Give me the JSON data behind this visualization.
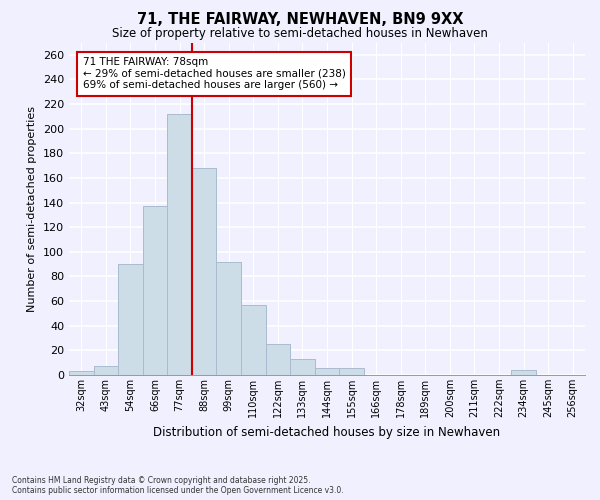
{
  "title": "71, THE FAIRWAY, NEWHAVEN, BN9 9XX",
  "subtitle": "Size of property relative to semi-detached houses in Newhaven",
  "xlabel": "Distribution of semi-detached houses by size in Newhaven",
  "ylabel": "Number of semi-detached properties",
  "categories": [
    "32sqm",
    "43sqm",
    "54sqm",
    "66sqm",
    "77sqm",
    "88sqm",
    "99sqm",
    "110sqm",
    "122sqm",
    "133sqm",
    "144sqm",
    "155sqm",
    "166sqm",
    "178sqm",
    "189sqm",
    "200sqm",
    "211sqm",
    "222sqm",
    "234sqm",
    "245sqm",
    "256sqm"
  ],
  "values": [
    3,
    7,
    90,
    137,
    212,
    168,
    92,
    57,
    25,
    13,
    6,
    6,
    0,
    0,
    0,
    0,
    0,
    0,
    4,
    0,
    0
  ],
  "bar_color": "#ccdde8",
  "bar_edge_color": "#aabbd0",
  "highlight_line_color": "#cc0000",
  "annotation_title": "71 THE FAIRWAY: 78sqm",
  "annotation_line1": "← 29% of semi-detached houses are smaller (238)",
  "annotation_line2": "69% of semi-detached houses are larger (560) →",
  "annotation_box_color": "#ffffff",
  "annotation_box_edge": "#cc0000",
  "ylim": [
    0,
    270
  ],
  "yticks": [
    0,
    20,
    40,
    60,
    80,
    100,
    120,
    140,
    160,
    180,
    200,
    220,
    240,
    260
  ],
  "footer_line1": "Contains HM Land Registry data © Crown copyright and database right 2025.",
  "footer_line2": "Contains public sector information licensed under the Open Government Licence v3.0.",
  "background_color": "#f0f0ff",
  "grid_color": "#ffffff"
}
